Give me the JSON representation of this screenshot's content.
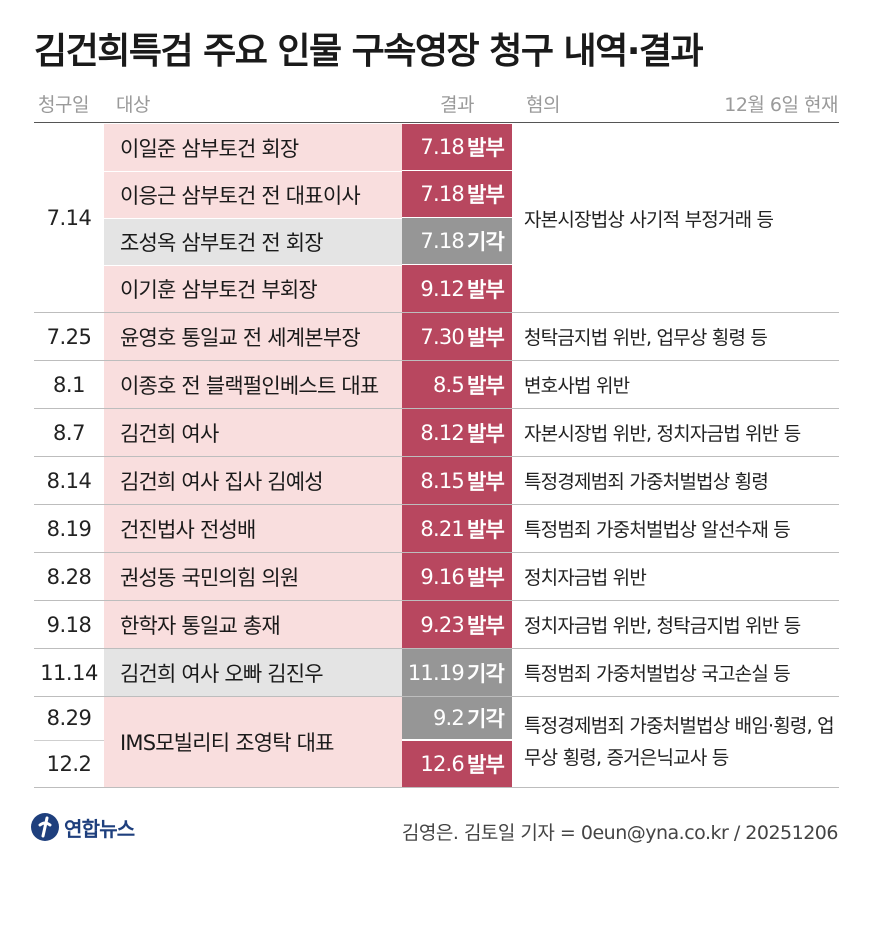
{
  "title": "김건희특검 주요 인물 구속영장 청구 내역·결과",
  "headers": {
    "date": "청구일",
    "target": "대상",
    "result": "결과",
    "charge": "혐의",
    "asof": "12월 6일 현재"
  },
  "group1": {
    "date": "7.14",
    "charge": "자본시장법상 사기적 부정거래 등",
    "rows": [
      {
        "target": "이일준 삼부토건 회장",
        "result_date": "7.18",
        "result": "발부"
      },
      {
        "target": "이응근 삼부토건 전 대표이사",
        "result_date": "7.18",
        "result": "발부"
      },
      {
        "target": "조성옥 삼부토건 전 회장",
        "result_date": "7.18",
        "result": "기각"
      },
      {
        "target": "이기훈 삼부토건 부회장",
        "result_date": "9.12",
        "result": "발부"
      }
    ]
  },
  "rows": [
    {
      "date": "7.25",
      "target": "윤영호 통일교 전 세계본부장",
      "result_date": "7.30",
      "result": "발부",
      "charge": "청탁금지법 위반, 업무상 횡령 등"
    },
    {
      "date": "8.1",
      "target": "이종호 전 블랙펄인베스트 대표",
      "result_date": "8.5",
      "result": "발부",
      "charge": "변호사법 위반"
    },
    {
      "date": "8.7",
      "target": "김건희 여사",
      "result_date": "8.12",
      "result": "발부",
      "charge": "자본시장법 위반, 정치자금법 위반 등"
    },
    {
      "date": "8.14",
      "target": "김건희 여사 집사 김예성",
      "result_date": "8.15",
      "result": "발부",
      "charge": "특정경제범죄 가중처벌법상 횡령"
    },
    {
      "date": "8.19",
      "target": "건진법사 전성배",
      "result_date": "8.21",
      "result": "발부",
      "charge": "특정범죄 가중처벌법상 알선수재 등"
    },
    {
      "date": "8.28",
      "target": "권성동 국민의힘 의원",
      "result_date": "9.16",
      "result": "발부",
      "charge": "정치자금법 위반"
    },
    {
      "date": "9.18",
      "target": "한학자 통일교 총재",
      "result_date": "9.23",
      "result": "발부",
      "charge": "정치자금법 위반, 청탁금지법 위반 등"
    },
    {
      "date": "11.14",
      "target": "김건희 여사 오빠 김진우",
      "result_date": "11.19",
      "result": "기각",
      "charge": "특정범죄 가중처벌법상 국고손실 등"
    }
  ],
  "group_last": {
    "dates": [
      "8.29",
      "12.2"
    ],
    "target": "IMS모빌리티 조영탁 대표",
    "results": [
      {
        "result_date": "9.2",
        "result": "기각"
      },
      {
        "result_date": "12.6",
        "result": "발부"
      }
    ],
    "charge": "특정경제범죄 가중처벌법상 배임·횡령, 업무상 횡령, 증거은닉교사 등"
  },
  "footer": {
    "logo_text": "연합뉴스",
    "credit": "김영은. 김토일 기자 = 0eun@yna.co.kr / 20251206"
  },
  "colors": {
    "pink_bg": "#f9dede",
    "gray_bg": "#e4e4e4",
    "issued": "#b8475f",
    "rejected": "#969696",
    "logo": "#1e3f7d"
  },
  "icons": {
    "logo": "yonhap-logo-icon"
  }
}
